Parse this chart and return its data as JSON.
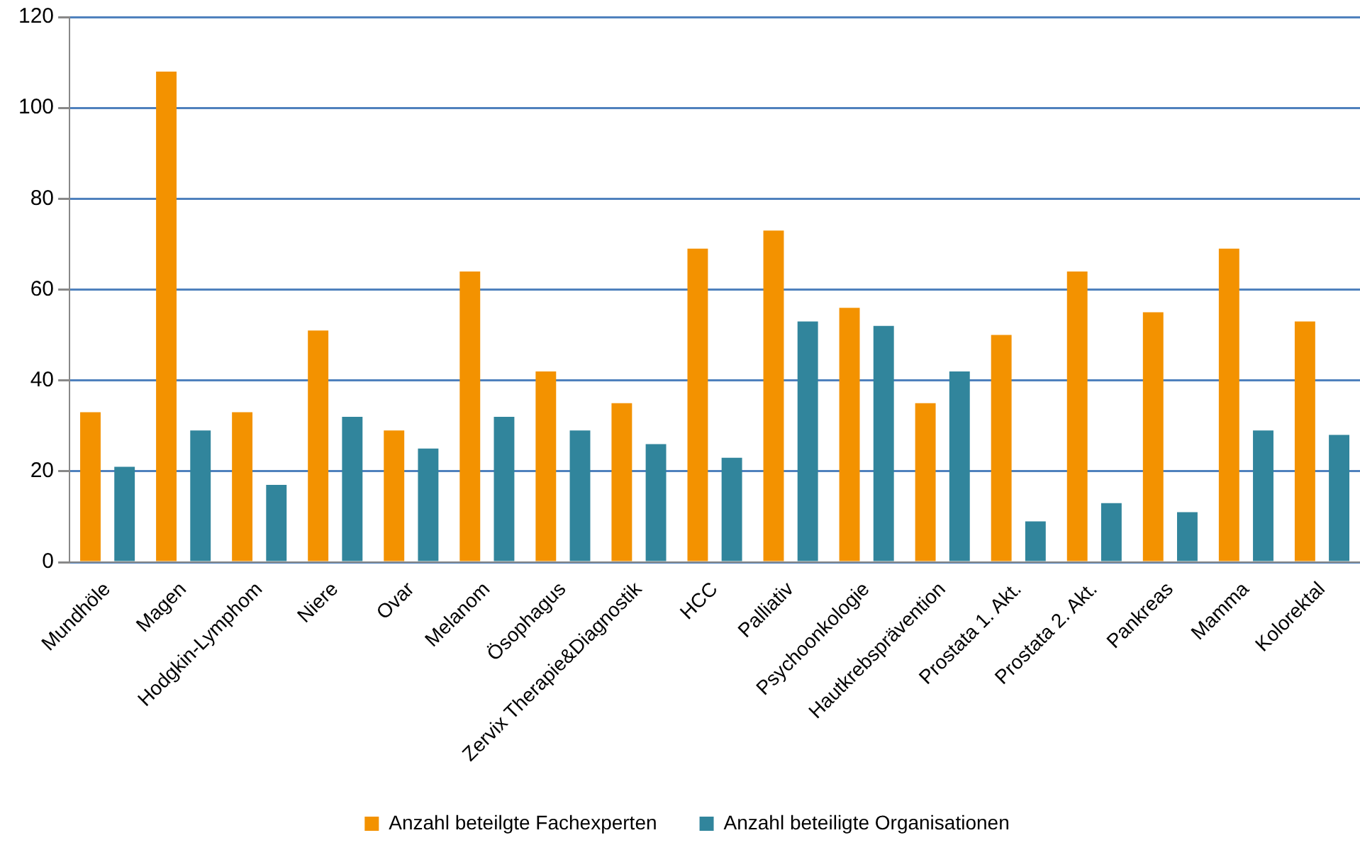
{
  "chart_data": {
    "type": "bar",
    "categories": [
      "Mundhöle",
      "Magen",
      "Hodgkin-Lymphom",
      "Niere",
      "Ovar",
      "Melanom",
      "Ösophagus",
      "Zervix Therapie&Diagnostik",
      "HCC",
      "Palliativ",
      "Psychoonkologie",
      "Hautkrebsprävention",
      "Prostata 1. Akt.",
      "Prostata 2. Akt.",
      "Pankreas",
      "Mamma",
      "Kolorektal"
    ],
    "series": [
      {
        "name": "Anzahl beteilgte Fachexperten",
        "color": "#f39200",
        "values": [
          33,
          108,
          33,
          51,
          29,
          64,
          42,
          35,
          69,
          73,
          56,
          35,
          50,
          64,
          55,
          69,
          53
        ]
      },
      {
        "name": "Anzahl beteiligte Organisationen",
        "color": "#31859c",
        "values": [
          21,
          29,
          17,
          32,
          25,
          32,
          29,
          26,
          23,
          53,
          52,
          42,
          9,
          13,
          11,
          29,
          28
        ]
      }
    ],
    "ylim": [
      0,
      120
    ],
    "yticks": [
      0,
      20,
      40,
      60,
      80,
      100,
      120
    ],
    "grid": "y",
    "legend": "bottom"
  }
}
